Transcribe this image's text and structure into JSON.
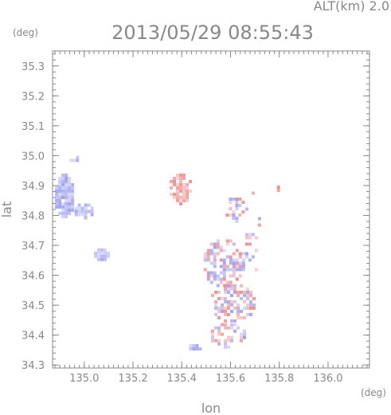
{
  "header": {
    "altitude_label": "ALT(km) 2.0",
    "timestamp": "2013/05/29 08:55:43"
  },
  "chart_data": {
    "type": "heatmap",
    "title": "2013/05/29 08:55:43",
    "xlabel": "lon",
    "ylabel": "lat",
    "x_unit": "(deg)",
    "y_unit": "(deg)",
    "xlim": [
      134.87,
      136.17
    ],
    "ylim": [
      34.29,
      35.35
    ],
    "x_ticks": [
      "135.0",
      "135.2",
      "135.4",
      "135.6",
      "135.8",
      "136.0"
    ],
    "y_ticks": [
      "34.3",
      "34.4",
      "34.5",
      "34.6",
      "34.7",
      "34.8",
      "34.9",
      "35.0",
      "35.1",
      "35.2",
      "35.3"
    ],
    "grid": false,
    "colors": {
      "toward": "#9a9aee",
      "away": "#ee8a8a",
      "axis": "#888888"
    },
    "regions": [
      {
        "name": "west-cluster-a",
        "lon": [
          134.88,
          134.96
        ],
        "lat": [
          34.79,
          34.94
        ],
        "color": "toward",
        "density": 0.95
      },
      {
        "name": "west-cluster-b",
        "lon": [
          134.96,
          135.04
        ],
        "lat": [
          34.79,
          34.84
        ],
        "color": "toward",
        "density": 0.9
      },
      {
        "name": "west-cluster-c",
        "lon": [
          134.94,
          134.98
        ],
        "lat": [
          34.98,
          35.0
        ],
        "color": "toward",
        "density": 0.9
      },
      {
        "name": "central-blob",
        "lon": [
          135.04,
          135.1
        ],
        "lat": [
          34.65,
          34.69
        ],
        "color": "toward",
        "density": 0.95
      },
      {
        "name": "north-east-arc",
        "lon": [
          135.35,
          135.44
        ],
        "lat": [
          34.84,
          34.94
        ],
        "color": "away",
        "density": 0.7
      },
      {
        "name": "east-ring",
        "lon": [
          135.58,
          135.66
        ],
        "lat": [
          34.78,
          34.86
        ],
        "color": "mixed",
        "density": 0.35
      },
      {
        "name": "east-band-upper",
        "lon": [
          135.49,
          135.66
        ],
        "lat": [
          34.56,
          34.72
        ],
        "color": "mixed",
        "density": 0.55
      },
      {
        "name": "east-band-mid",
        "lon": [
          135.52,
          135.7
        ],
        "lat": [
          34.44,
          34.57
        ],
        "color": "mixed",
        "density": 0.55
      },
      {
        "name": "east-band-lower",
        "lon": [
          135.52,
          135.66
        ],
        "lat": [
          34.36,
          34.44
        ],
        "color": "mixed",
        "density": 0.45
      },
      {
        "name": "south-spot",
        "lon": [
          135.43,
          135.5
        ],
        "lat": [
          34.35,
          34.37
        ],
        "color": "toward",
        "density": 0.7
      },
      {
        "name": "far-east-spot",
        "lon": [
          135.79,
          135.81
        ],
        "lat": [
          34.88,
          34.9
        ],
        "color": "away",
        "density": 0.9
      },
      {
        "name": "east-speckles",
        "lon": [
          135.66,
          135.72
        ],
        "lat": [
          34.6,
          34.88
        ],
        "color": "mixed",
        "density": 0.2
      }
    ]
  }
}
